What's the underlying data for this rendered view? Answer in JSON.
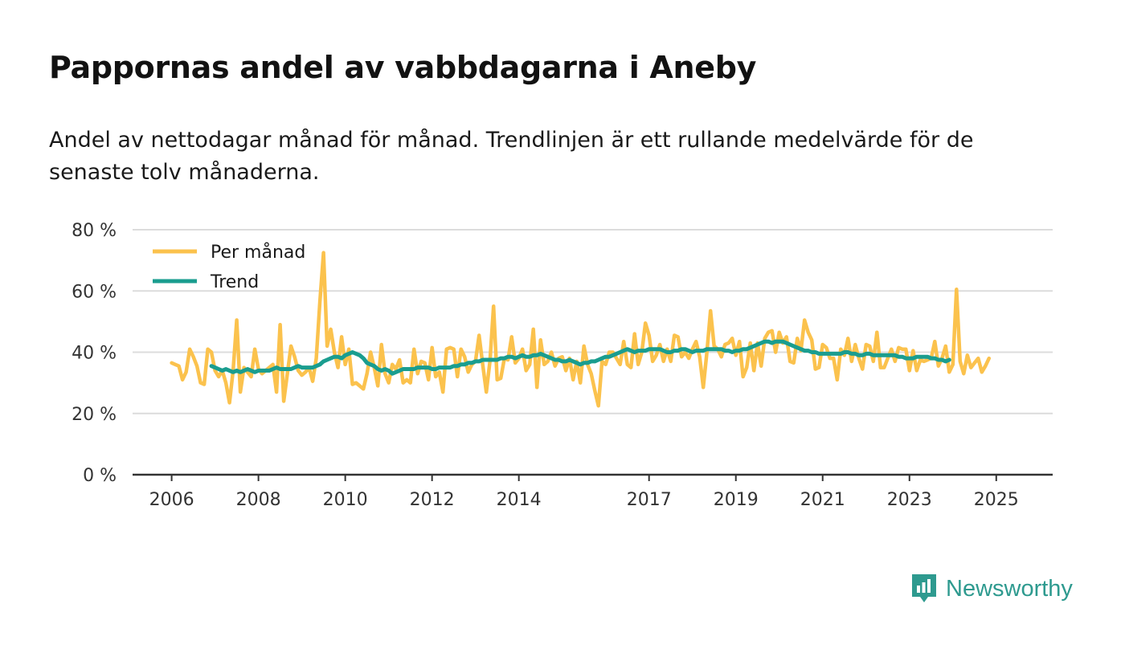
{
  "title": "Pappornas andel av vabbdagarna i Aneby",
  "subtitle": "Andel av nettodagar månad för månad. Trendlinjen är ett rullande medelvärde för de senaste tolv månaderna.",
  "brand": {
    "name": "Newsworthy",
    "icon": "newsworthy-logo-icon"
  },
  "colors": {
    "monthly": "#fbc24d",
    "trend": "#1a9d8f",
    "grid": "#dcdcdc",
    "axis": "#333333"
  },
  "chart_data": {
    "type": "line",
    "ylim": [
      0,
      80
    ],
    "y_ticks": [
      0,
      20,
      40,
      60,
      80
    ],
    "y_tick_labels": [
      "0 %",
      "20 %",
      "40 %",
      "60 %",
      "80 %"
    ],
    "x_ticks": [
      2006,
      2008,
      2010,
      2012,
      2014,
      2017,
      2019,
      2021,
      2023,
      2025
    ],
    "x_tick_labels": [
      "2006",
      "2008",
      "2010",
      "2012",
      "2014",
      "2017",
      "2019",
      "2021",
      "2023",
      "2025"
    ],
    "x_range": [
      2005.1,
      2026.3
    ],
    "grid": true,
    "legend": [
      {
        "name": "Per månad",
        "color": "#fbc24d"
      },
      {
        "name": "Trend",
        "color": "#1a9d8f"
      }
    ],
    "legend_position": "top-left",
    "series": [
      {
        "name": "Per månad",
        "color": "#fbc24d",
        "x_start": 2006.0,
        "x_step": 0.08333333,
        "values": [
          36.5,
          36.0,
          35.5,
          31.0,
          33.5,
          41.0,
          38.5,
          35.5,
          30.0,
          29.5,
          41.0,
          40.0,
          34.0,
          32.0,
          34.0,
          30.0,
          23.5,
          34.0,
          50.5,
          27.0,
          35.0,
          33.5,
          32.0,
          41.0,
          34.5,
          33.0,
          34.0,
          35.0,
          36.0,
          27.0,
          49.0,
          24.0,
          33.0,
          42.0,
          38.5,
          34.0,
          32.5,
          33.5,
          35.0,
          30.5,
          38.0,
          56.5,
          72.5,
          42.0,
          47.5,
          40.0,
          35.0,
          45.0,
          36.0,
          41.0,
          29.5,
          30.0,
          29.0,
          28.0,
          33.0,
          40.0,
          35.0,
          29.0,
          42.5,
          33.0,
          30.0,
          36.0,
          34.5,
          37.5,
          30.0,
          31.0,
          30.0,
          41.0,
          33.0,
          37.0,
          36.5,
          31.0,
          41.5,
          32.0,
          33.5,
          27.0,
          41.0,
          41.5,
          41.0,
          32.0,
          41.0,
          38.5,
          33.5,
          36.0,
          37.0,
          45.5,
          36.0,
          27.0,
          37.0,
          55.0,
          31.0,
          31.5,
          38.0,
          37.5,
          45.0,
          36.5,
          38.0,
          41.0,
          34.0,
          36.0,
          47.5,
          28.5,
          44.0,
          36.0,
          37.0,
          40.0,
          35.5,
          38.0,
          38.5,
          34.0,
          38.0,
          31.0,
          37.0,
          30.0,
          42.0,
          36.0,
          33.0,
          27.5,
          22.5,
          37.0,
          36.0,
          40.0,
          40.0,
          38.0,
          36.0,
          43.5,
          36.0,
          35.0,
          46.0,
          36.0,
          40.0,
          49.5,
          45.5,
          37.0,
          39.0,
          42.5,
          37.0,
          41.0,
          37.0,
          45.5,
          45.0,
          38.5,
          40.0,
          38.0,
          41.0,
          43.5,
          38.5,
          28.5,
          40.0,
          53.5,
          42.0,
          41.0,
          38.5,
          42.5,
          43.0,
          44.5,
          39.0,
          43.5,
          32.0,
          35.0,
          43.0,
          34.0,
          43.0,
          35.5,
          44.5,
          46.5,
          47.0,
          40.0,
          46.5,
          43.0,
          45.0,
          37.0,
          36.5,
          44.5,
          40.5,
          50.5,
          46.5,
          44.0,
          34.5,
          35.0,
          42.5,
          41.5,
          38.0,
          38.0,
          31.0,
          41.0,
          39.0,
          44.5,
          37.0,
          42.5,
          38.0,
          34.5,
          42.5,
          42.0,
          37.0,
          46.5,
          35.0,
          35.0,
          38.0,
          41.0,
          37.0,
          41.5,
          41.0,
          41.0,
          34.0,
          40.5,
          34.0,
          37.5,
          37.0,
          37.5,
          38.0,
          43.5,
          35.5,
          38.0,
          42.0,
          33.5,
          36.0,
          60.5,
          37.0,
          33.0,
          39.0,
          35.0,
          36.5,
          38.0,
          33.5,
          35.5,
          38.0
        ]
      },
      {
        "name": "Trend",
        "color": "#1a9d8f",
        "x_start": 2006.9167,
        "x_step": 0.08333333,
        "values": [
          35.5,
          35.0,
          34.5,
          34.0,
          34.5,
          34.0,
          33.5,
          34.0,
          33.5,
          34.0,
          34.5,
          34.0,
          33.5,
          34.0,
          34.0,
          34.0,
          34.0,
          34.5,
          35.0,
          34.5,
          34.5,
          34.5,
          34.5,
          35.0,
          35.5,
          35.0,
          35.0,
          35.0,
          35.0,
          35.5,
          36.0,
          37.0,
          37.5,
          38.0,
          38.5,
          38.5,
          38.0,
          39.0,
          39.5,
          40.0,
          39.5,
          39.0,
          38.0,
          36.5,
          36.0,
          35.5,
          34.5,
          34.0,
          34.5,
          34.0,
          33.0,
          33.5,
          34.0,
          34.5,
          34.5,
          34.5,
          34.5,
          35.0,
          35.0,
          35.0,
          35.0,
          34.5,
          34.5,
          35.0,
          35.0,
          35.0,
          35.0,
          35.5,
          35.5,
          36.0,
          36.0,
          36.5,
          36.5,
          37.0,
          37.0,
          37.5,
          37.5,
          37.5,
          37.5,
          37.5,
          38.0,
          38.0,
          38.5,
          38.5,
          38.0,
          38.5,
          39.0,
          38.5,
          38.5,
          39.0,
          39.0,
          39.5,
          39.0,
          38.5,
          38.0,
          37.5,
          37.5,
          37.0,
          37.0,
          37.5,
          37.0,
          36.5,
          36.0,
          36.5,
          36.5,
          37.0,
          37.0,
          37.5,
          38.0,
          38.5,
          38.5,
          39.0,
          39.5,
          40.0,
          40.5,
          41.0,
          40.5,
          40.0,
          40.5,
          40.5,
          40.5,
          41.0,
          41.0,
          41.0,
          41.0,
          40.5,
          40.0,
          40.0,
          40.5,
          40.5,
          41.0,
          41.0,
          40.5,
          40.0,
          40.5,
          40.5,
          40.5,
          41.0,
          41.0,
          41.0,
          41.0,
          41.0,
          40.5,
          40.5,
          40.0,
          40.5,
          40.5,
          41.0,
          41.0,
          41.5,
          42.0,
          42.5,
          43.0,
          43.5,
          43.5,
          43.0,
          43.5,
          43.5,
          43.5,
          43.0,
          42.5,
          42.0,
          41.5,
          41.0,
          40.5,
          40.5,
          40.0,
          40.0,
          39.5,
          39.5,
          39.5,
          39.5,
          39.5,
          39.5,
          39.5,
          40.0,
          40.0,
          39.5,
          39.5,
          39.0,
          39.0,
          39.5,
          39.5,
          39.0,
          39.0,
          39.0,
          39.0,
          39.0,
          39.0,
          39.0,
          38.5,
          38.5,
          38.0,
          38.0,
          38.0,
          38.5,
          38.5,
          38.5,
          38.5,
          38.0,
          38.0,
          37.5,
          37.5,
          37.0,
          37.5
        ]
      }
    ]
  }
}
